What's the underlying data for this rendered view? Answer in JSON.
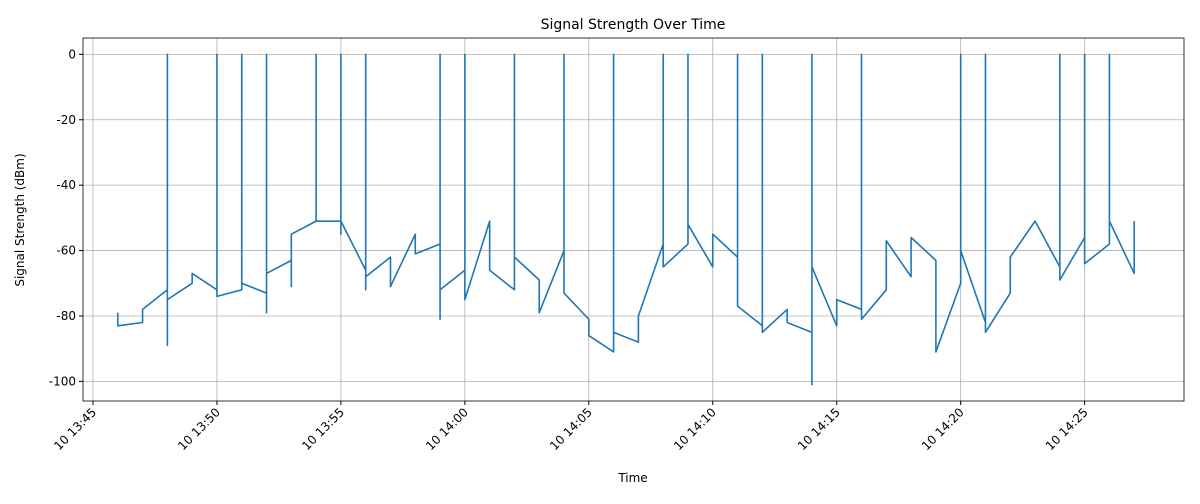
{
  "chart_data": {
    "type": "line",
    "title": "Signal Strength Over Time",
    "x_label": "Time",
    "y_label": "Signal Strength (dBm)",
    "x": [
      "10 13:46",
      "10 13:46",
      "10 13:47",
      "10 13:47",
      "10 13:48",
      "10 13:48",
      "10 13:48",
      "10 13:48",
      "10 13:49",
      "10 13:49",
      "10 13:50",
      "10 13:50",
      "10 13:50",
      "10 13:50",
      "10 13:50",
      "10 13:51",
      "10 13:51",
      "10 13:51",
      "10 13:52",
      "10 13:52",
      "10 13:52",
      "10 13:52",
      "10 13:53",
      "10 13:53",
      "10 13:53",
      "10 13:54",
      "10 13:54",
      "10 13:54",
      "10 13:55",
      "10 13:55",
      "10 13:55",
      "10 13:55",
      "10 13:55",
      "10 13:56",
      "10 13:56",
      "10 13:56",
      "10 13:56",
      "10 13:56",
      "10 13:57",
      "10 13:57",
      "10 13:58",
      "10 13:58",
      "10 13:59",
      "10 13:59",
      "10 13:59",
      "10 13:59",
      "10 13:59",
      "10 14:00",
      "10 14:00",
      "10 14:00",
      "10 14:01",
      "10 14:01",
      "10 14:02",
      "10 14:02",
      "10 14:02",
      "10 14:03",
      "10 14:03",
      "10 14:04",
      "10 14:04",
      "10 14:04",
      "10 14:05",
      "10 14:05",
      "10 14:06",
      "10 14:06",
      "10 14:06",
      "10 14:06",
      "10 14:06",
      "10 14:07",
      "10 14:07",
      "10 14:08",
      "10 14:08",
      "10 14:08",
      "10 14:09",
      "10 14:09",
      "10 14:09",
      "10 14:10",
      "10 14:10",
      "10 14:11",
      "10 14:11",
      "10 14:11",
      "10 14:12",
      "10 14:12",
      "10 14:12",
      "10 14:13",
      "10 14:13",
      "10 14:14",
      "10 14:14",
      "10 14:14",
      "10 14:14",
      "10 14:14",
      "10 14:15",
      "10 14:15",
      "10 14:16",
      "10 14:16",
      "10 14:16",
      "10 14:17",
      "10 14:17",
      "10 14:18",
      "10 14:18",
      "10 14:19",
      "10 14:19",
      "10 14:20",
      "10 14:20",
      "10 14:20",
      "10 14:21",
      "10 14:21",
      "10 14:21",
      "10 14:22",
      "10 14:22",
      "10 14:23",
      "10 14:23",
      "10 14:24",
      "10 14:24",
      "10 14:24",
      "10 14:25",
      "10 14:25",
      "10 14:25",
      "10 14:26",
      "10 14:26",
      "10 14:26",
      "10 14:27",
      "10 14:27"
    ],
    "series": [
      {
        "name": "Signal Strength",
        "color": "#1f77b4",
        "values": [
          -79,
          -83,
          -82,
          -78,
          -72,
          0,
          -89,
          -75,
          -70,
          -67,
          -72,
          0,
          -65,
          0,
          -74,
          -72,
          0,
          -70,
          -73,
          0,
          -79,
          -67,
          -63,
          -71,
          -55,
          -51,
          0,
          -51,
          -51,
          0,
          -55,
          0,
          -51,
          -66,
          0,
          -72,
          0,
          -68,
          -62,
          -71,
          -55,
          -61,
          -58,
          0,
          -81,
          0,
          -72,
          -66,
          0,
          -75,
          -51,
          -66,
          -72,
          0,
          -62,
          -69,
          -79,
          -60,
          0,
          -73,
          -81,
          -86,
          -91,
          0,
          -89,
          0,
          -85,
          -88,
          -80,
          -58,
          0,
          -65,
          -58,
          0,
          -52,
          -65,
          -55,
          -62,
          0,
          -77,
          -83,
          0,
          -85,
          -78,
          -82,
          -85,
          0,
          -93,
          -101,
          -65,
          -83,
          -75,
          -78,
          0,
          -81,
          -72,
          -57,
          -68,
          -56,
          -63,
          -91,
          -70,
          0,
          -60,
          -82,
          0,
          -85,
          -73,
          -62,
          -51,
          -51,
          -65,
          0,
          -69,
          -56,
          0,
          -64,
          -58,
          0,
          -51,
          -67,
          -51
        ]
      }
    ],
    "xlim": [
      "10 13:45",
      "10 14:28"
    ],
    "xticks": [
      "10 13:45",
      "10 13:50",
      "10 13:55",
      "10 14:00",
      "10 14:05",
      "10 14:10",
      "10 14:15",
      "10 14:20",
      "10 14:25"
    ],
    "ylim": [
      -106,
      5
    ],
    "yticks": [
      -100,
      -80,
      -60,
      -40,
      -20,
      0
    ],
    "grid": true
  }
}
